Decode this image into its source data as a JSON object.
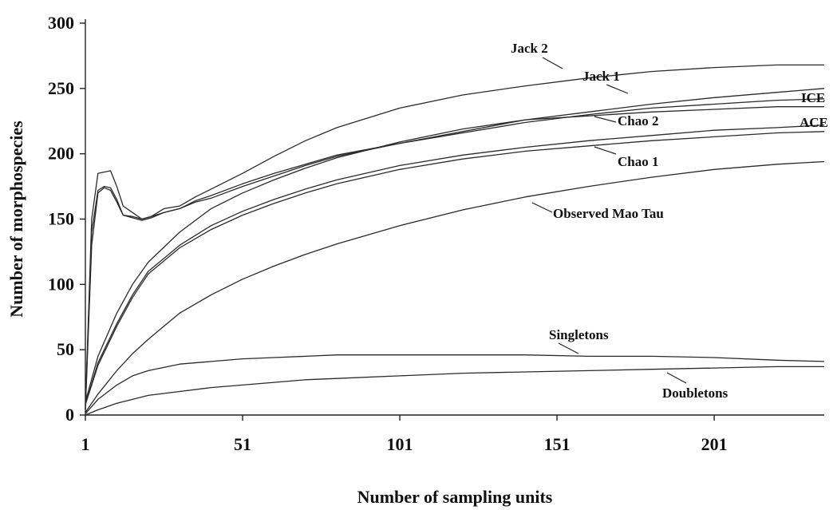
{
  "chart_data": {
    "type": "line",
    "title": "",
    "xlabel": "Number of sampling units",
    "ylabel": "Number of morphospecies",
    "xlim": [
      1,
      236
    ],
    "ylim": [
      0,
      300
    ],
    "x_ticks": [
      1,
      51,
      101,
      151,
      201
    ],
    "y_ticks": [
      0,
      50,
      100,
      150,
      200,
      250,
      300
    ],
    "grid": false,
    "legend": "inline labels",
    "series": [
      {
        "name": "Jack 2",
        "x": [
          1,
          3,
          5,
          7,
          9,
          11,
          13,
          16,
          19,
          22,
          26,
          31,
          36,
          41,
          51,
          61,
          71,
          81,
          101,
          121,
          141,
          161,
          181,
          201,
          221,
          236
        ],
        "values": [
          5,
          150,
          185,
          186,
          187,
          175,
          160,
          155,
          150,
          152,
          158,
          160,
          167,
          173,
          185,
          198,
          210,
          220,
          235,
          245,
          252,
          258,
          263,
          266,
          268,
          268
        ]
      },
      {
        "name": "Jack 1",
        "x": [
          1,
          5,
          11,
          16,
          21,
          31,
          41,
          51,
          61,
          71,
          81,
          101,
          121,
          141,
          161,
          181,
          201,
          221,
          236
        ],
        "values": [
          10,
          45,
          78,
          100,
          117,
          140,
          158,
          170,
          180,
          189,
          197,
          209,
          219,
          226,
          232,
          238,
          243,
          247,
          250
        ]
      },
      {
        "name": "ICE",
        "x": [
          1,
          3,
          5,
          7,
          9,
          11,
          13,
          16,
          19,
          22,
          26,
          31,
          36,
          41,
          51,
          61,
          71,
          81,
          101,
          121,
          141,
          161,
          181,
          201,
          221,
          236
        ],
        "values": [
          5,
          140,
          172,
          175,
          174,
          165,
          153,
          152,
          150,
          152,
          155,
          158,
          164,
          168,
          177,
          185,
          192,
          199,
          208,
          216,
          224,
          230,
          235,
          238,
          241,
          242
        ]
      },
      {
        "name": "Chao 2",
        "x": [
          1,
          3,
          5,
          7,
          9,
          11,
          13,
          16,
          19,
          22,
          26,
          31,
          36,
          41,
          51,
          61,
          71,
          81,
          101,
          121,
          141,
          161,
          181,
          201,
          221,
          236
        ],
        "values": [
          4,
          130,
          170,
          174,
          172,
          163,
          153,
          151,
          149,
          151,
          155,
          158,
          163,
          166,
          175,
          183,
          191,
          198,
          208,
          217,
          226,
          229,
          232,
          234,
          236,
          236
        ]
      },
      {
        "name": "ACE",
        "x": [
          1,
          5,
          11,
          16,
          21,
          31,
          41,
          51,
          61,
          71,
          81,
          101,
          121,
          141,
          161,
          181,
          201,
          221,
          236
        ],
        "values": [
          8,
          40,
          70,
          92,
          110,
          130,
          145,
          156,
          165,
          173,
          180,
          191,
          199,
          205,
          210,
          214,
          218,
          220,
          222
        ]
      },
      {
        "name": "Chao 1",
        "x": [
          1,
          5,
          11,
          16,
          21,
          31,
          41,
          51,
          61,
          71,
          81,
          101,
          121,
          141,
          161,
          181,
          201,
          221,
          236
        ],
        "values": [
          8,
          38,
          68,
          90,
          108,
          128,
          142,
          153,
          162,
          170,
          177,
          188,
          196,
          202,
          206,
          210,
          213,
          216,
          217
        ]
      },
      {
        "name": "Observed Mao Tau",
        "x": [
          1,
          5,
          11,
          16,
          21,
          31,
          41,
          51,
          61,
          71,
          81,
          101,
          121,
          141,
          161,
          181,
          201,
          221,
          236
        ],
        "values": [
          2,
          16,
          34,
          47,
          58,
          78,
          92,
          104,
          114,
          123,
          131,
          145,
          157,
          167,
          175,
          182,
          188,
          192,
          194
        ]
      },
      {
        "name": "Singletons",
        "x": [
          1,
          5,
          11,
          16,
          21,
          31,
          41,
          51,
          61,
          71,
          81,
          101,
          121,
          141,
          161,
          181,
          201,
          221,
          236
        ],
        "values": [
          1,
          12,
          23,
          30,
          34,
          39,
          41,
          43,
          44,
          45,
          46,
          46,
          46,
          46,
          45,
          45,
          44,
          42,
          41
        ]
      },
      {
        "name": "Doubletons",
        "x": [
          1,
          5,
          11,
          16,
          21,
          31,
          41,
          51,
          61,
          71,
          81,
          101,
          121,
          141,
          161,
          181,
          201,
          221,
          236
        ],
        "values": [
          0,
          4,
          9,
          12,
          15,
          18,
          21,
          23,
          25,
          27,
          28,
          30,
          32,
          33,
          34,
          35,
          36,
          37,
          37
        ]
      }
    ],
    "annotations": [
      {
        "text": "Jack 2",
        "series": "Jack 2"
      },
      {
        "text": "Jack 1",
        "series": "Jack 1"
      },
      {
        "text": "ICE",
        "series": "ICE"
      },
      {
        "text": "Chao 2",
        "series": "Chao 2"
      },
      {
        "text": "ACE",
        "series": "ACE"
      },
      {
        "text": "Chao 1",
        "series": "Chao 1"
      },
      {
        "text": "Observed Mao Tau",
        "series": "Observed Mao Tau"
      },
      {
        "text": "Singletons",
        "series": "Singletons"
      },
      {
        "text": "Doubletons",
        "series": "Doubletons"
      }
    ]
  }
}
